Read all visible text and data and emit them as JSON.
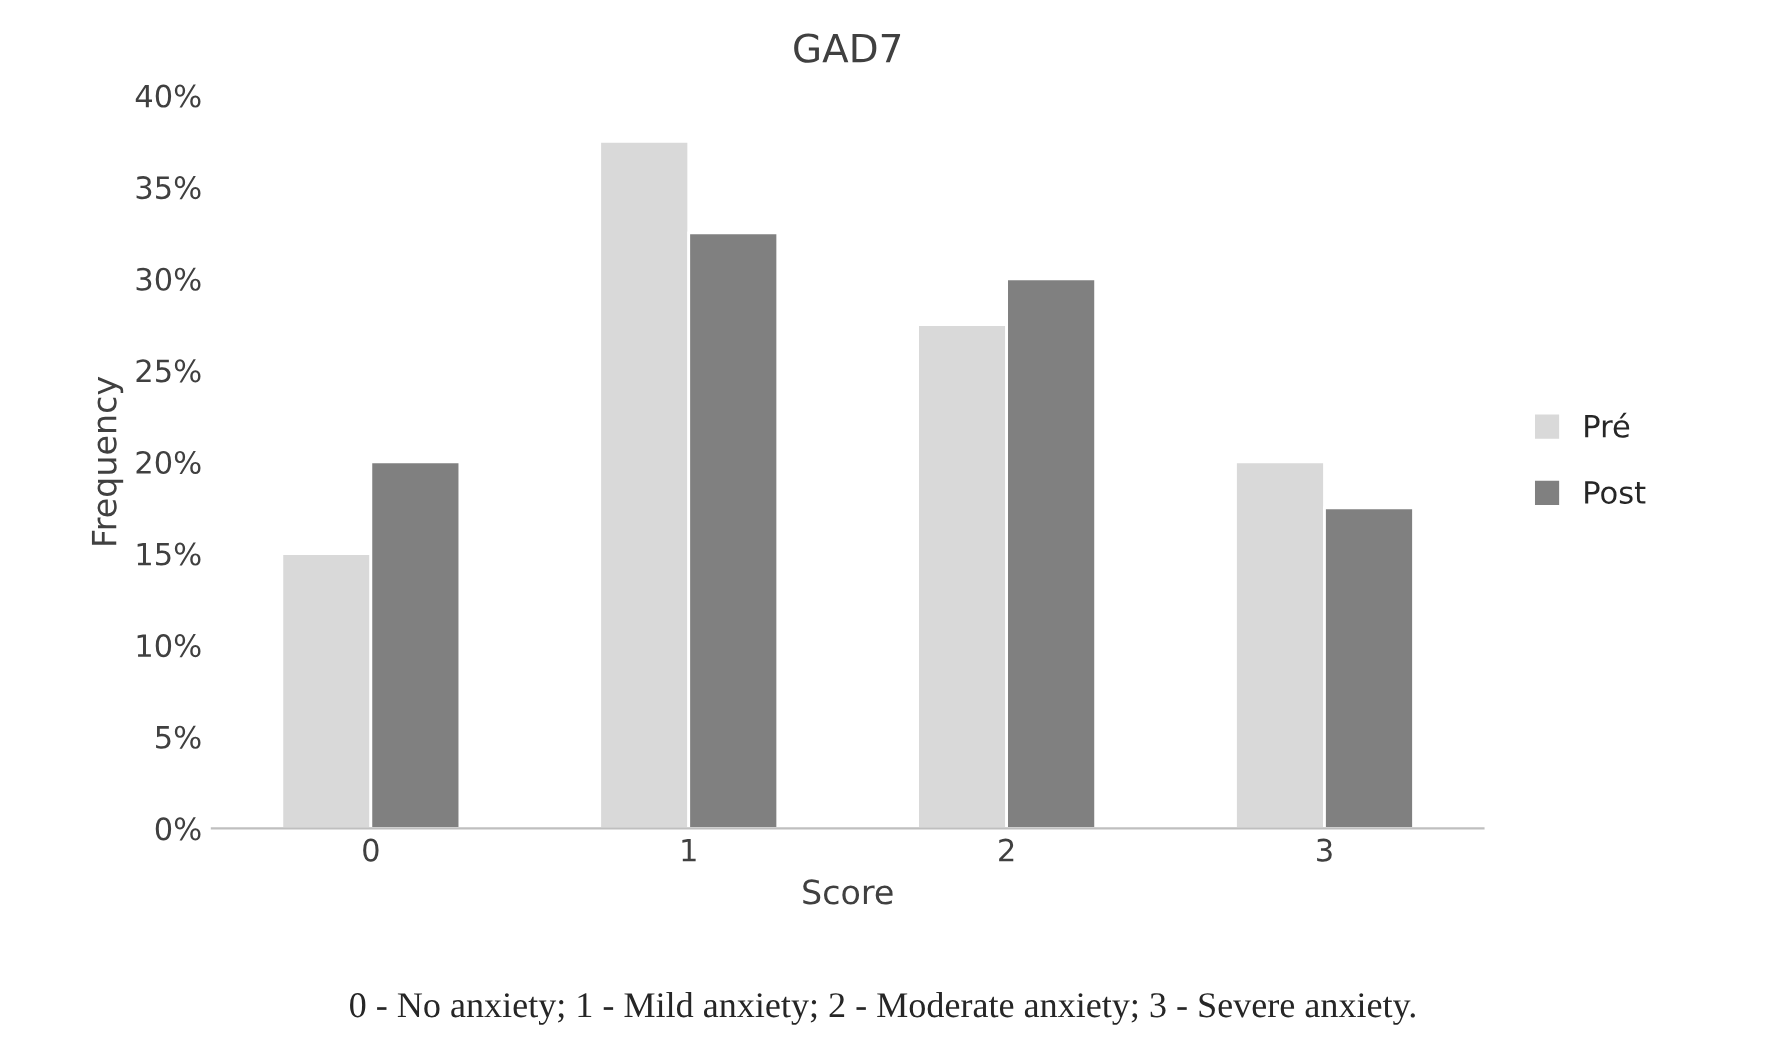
{
  "chart_data": {
    "type": "bar",
    "title": "GAD7",
    "xlabel": "Score",
    "ylabel": "Frequency",
    "categories": [
      "0",
      "1",
      "2",
      "3"
    ],
    "series": [
      {
        "name": "Pré",
        "color": "#d9d9d9",
        "values": [
          15,
          37.5,
          27.5,
          20
        ]
      },
      {
        "name": "Post",
        "color": "#808080",
        "values": [
          20,
          32.5,
          30,
          17.5
        ]
      }
    ],
    "ylim": [
      0,
      40
    ],
    "yticks": [
      {
        "value": 0,
        "label": "0%"
      },
      {
        "value": 5,
        "label": "5%"
      },
      {
        "value": 10,
        "label": "10%"
      },
      {
        "value": 15,
        "label": "15%"
      },
      {
        "value": 20,
        "label": "20%"
      },
      {
        "value": 25,
        "label": "25%"
      },
      {
        "value": 30,
        "label": "30%"
      },
      {
        "value": 35,
        "label": "35%"
      },
      {
        "value": 40,
        "label": "40%"
      }
    ],
    "grid": false,
    "legend": "right",
    "annotations": [
      "0 - No anxiety; 1 - Mild anxiety; 2 - Moderate anxiety; 3 - Severe anxiety."
    ]
  }
}
